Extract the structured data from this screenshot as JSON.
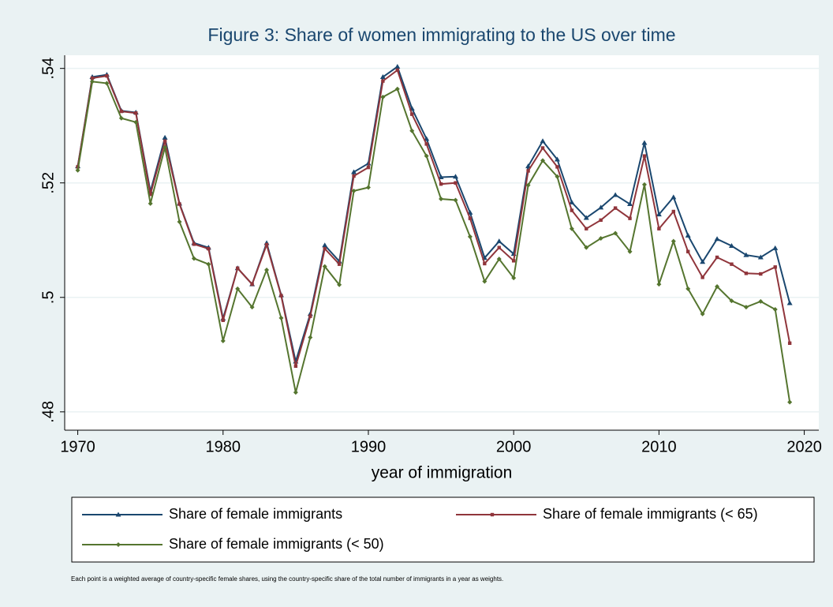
{
  "chart_data": {
    "type": "line",
    "title": "Figure 3: Share of women immigrating to the US over time",
    "x_label": "year of immigration",
    "note": "Each point is a weighted average of country-specific female shares, using the country-specific share of the total number of immigrants in a year as weights.",
    "x": [
      1970,
      1971,
      1972,
      1973,
      1974,
      1975,
      1976,
      1977,
      1978,
      1979,
      1980,
      1981,
      1982,
      1983,
      1984,
      1985,
      1986,
      1987,
      1988,
      1989,
      1990,
      1991,
      1992,
      1993,
      1994,
      1995,
      1996,
      1997,
      1998,
      1999,
      2000,
      2001,
      2002,
      2003,
      2004,
      2005,
      2006,
      2007,
      2008,
      2009,
      2010,
      2011,
      2012,
      2013,
      2014,
      2015,
      2016,
      2017,
      2018,
      2019
    ],
    "series": [
      {
        "name": "Share of female immigrants",
        "color": "#1a476f",
        "marker": "triangle",
        "values": [
          0.5229,
          0.5385,
          0.5389,
          0.5326,
          0.5323,
          0.5185,
          0.5279,
          0.5164,
          0.5095,
          0.5087,
          0.4963,
          0.5051,
          0.5023,
          0.5095,
          0.5004,
          0.4888,
          0.4971,
          0.5091,
          0.5063,
          0.5219,
          0.5234,
          0.5385,
          0.5403,
          0.533,
          0.5277,
          0.521,
          0.5211,
          0.5148,
          0.5069,
          0.5098,
          0.5076,
          0.5229,
          0.5273,
          0.5241,
          0.5166,
          0.5139,
          0.5157,
          0.5179,
          0.5163,
          0.527,
          0.5145,
          0.5175,
          0.5108,
          0.5062,
          0.5102,
          0.509,
          0.5074,
          0.507,
          0.5086,
          0.499
        ]
      },
      {
        "name": "Share of female immigrants (< 65)",
        "color": "#90353b",
        "marker": "square",
        "values": [
          0.5228,
          0.5383,
          0.5387,
          0.5325,
          0.5322,
          0.518,
          0.5273,
          0.5163,
          0.5093,
          0.5085,
          0.496,
          0.5051,
          0.5023,
          0.5092,
          0.5003,
          0.488,
          0.4967,
          0.5085,
          0.5058,
          0.5212,
          0.5227,
          0.5378,
          0.5397,
          0.532,
          0.5268,
          0.5198,
          0.52,
          0.5138,
          0.5059,
          0.5087,
          0.5064,
          0.5221,
          0.5261,
          0.5228,
          0.5152,
          0.512,
          0.5135,
          0.5156,
          0.5138,
          0.5247,
          0.512,
          0.515,
          0.508,
          0.5035,
          0.507,
          0.5058,
          0.5042,
          0.5041,
          0.5053,
          0.492
        ]
      },
      {
        "name": "Share of female immigrants (< 50)",
        "color": "#55752f",
        "marker": "diamond",
        "values": [
          0.5222,
          0.5377,
          0.5374,
          0.5313,
          0.5306,
          0.5164,
          0.5262,
          0.5132,
          0.5068,
          0.5058,
          0.4924,
          0.5015,
          0.4983,
          0.5048,
          0.4964,
          0.4834,
          0.493,
          0.5054,
          0.5022,
          0.5186,
          0.5192,
          0.535,
          0.5364,
          0.5291,
          0.5247,
          0.5172,
          0.517,
          0.5106,
          0.5028,
          0.5067,
          0.5034,
          0.5196,
          0.5239,
          0.5211,
          0.512,
          0.5087,
          0.5103,
          0.5112,
          0.508,
          0.5197,
          0.5023,
          0.5098,
          0.5015,
          0.4971,
          0.5019,
          0.4994,
          0.4983,
          0.4993,
          0.4979,
          0.4817
        ]
      }
    ],
    "xlim": [
      1969.1,
      2021
    ],
    "ylim": [
      0.4768,
      0.5423
    ],
    "xticks": [
      1970,
      1980,
      1990,
      2000,
      2010,
      2020
    ],
    "yticks": [
      {
        "value": 0.48,
        "label": ".48"
      },
      {
        "value": 0.5,
        "label": ".5"
      },
      {
        "value": 0.52,
        "label": ".52"
      },
      {
        "value": 0.54,
        "label": ".54"
      }
    ],
    "grid": true,
    "legend": "bottom"
  }
}
